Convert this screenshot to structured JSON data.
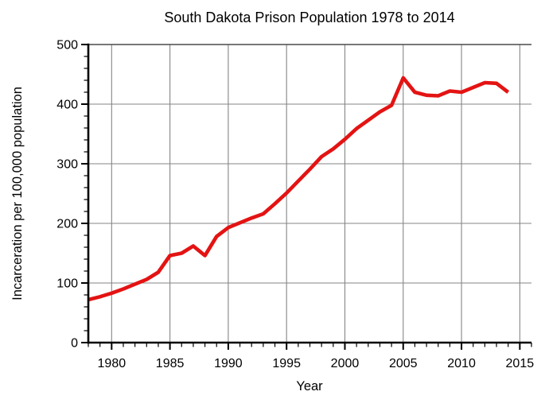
{
  "title": "South Dakota Prison Population 1978 to 2014",
  "chart_data": {
    "type": "line",
    "title": "South Dakota Prison Population 1978 to 2014",
    "xlabel": "Year",
    "ylabel": "Incarceration per 100,000 population",
    "x_range": [
      1978,
      2016
    ],
    "y_range": [
      0,
      500
    ],
    "x_major_ticks": [
      1980,
      1985,
      1990,
      1995,
      2000,
      2005,
      2010,
      2015
    ],
    "x_minor_step": 1,
    "y_major_ticks": [
      0,
      100,
      200,
      300,
      400,
      500
    ],
    "y_minor_step": 20,
    "grid": "major",
    "legend": "none",
    "line_color": "#e41313",
    "grid_color": "#858585",
    "axis_color": "#000000",
    "series": [
      {
        "name": "Incarceration rate per 100,000",
        "x": [
          1978,
          1979,
          1980,
          1981,
          1982,
          1983,
          1984,
          1985,
          1986,
          1987,
          1988,
          1989,
          1990,
          1991,
          1992,
          1993,
          1994,
          1995,
          1996,
          1997,
          1998,
          1999,
          2000,
          2001,
          2002,
          2003,
          2004,
          2005,
          2006,
          2007,
          2008,
          2009,
          2010,
          2011,
          2012,
          2013,
          2014
        ],
        "values": [
          72,
          77,
          83,
          90,
          98,
          106,
          118,
          146,
          150,
          162,
          146,
          178,
          193,
          201,
          209,
          216,
          233,
          251,
          271,
          291,
          312,
          325,
          341,
          359,
          373,
          387,
          398,
          444,
          420,
          415,
          414,
          422,
          420,
          428,
          436,
          435,
          420
        ]
      }
    ]
  }
}
